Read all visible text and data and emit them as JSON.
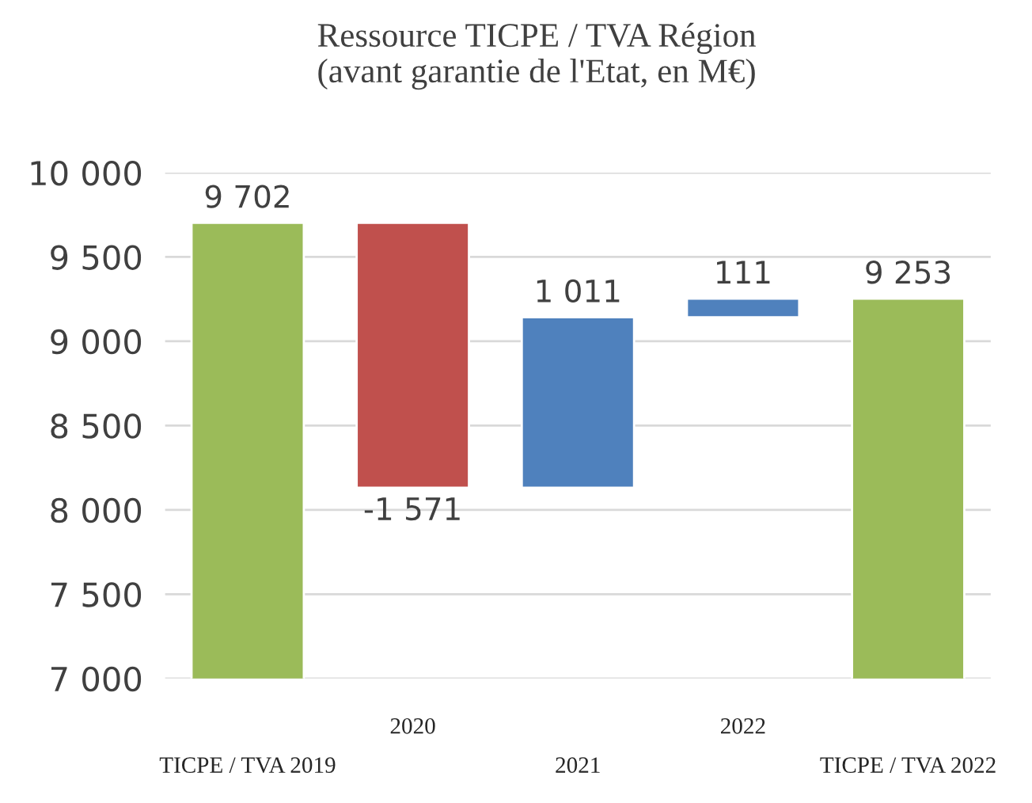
{
  "chart_data": {
    "type": "bar",
    "title": "Ressource TICPE / TVA Région\n(avant garantie de l'Etat, en M€)",
    "categories": [
      "TICPE / TVA 2019",
      "2020",
      "2021",
      "2022",
      "TICPE / TVA 2022"
    ],
    "values": [
      9702,
      -1571,
      1011,
      111,
      9253
    ],
    "base": [
      0,
      9702,
      8131,
      9142,
      0
    ],
    "colors": [
      "#9bbb59",
      "#c0504d",
      "#4f81bd",
      "#4f81bd",
      "#9bbb59"
    ],
    "value_labels": [
      "9 702",
      "-1 571",
      "1 011",
      "111",
      "9 253"
    ],
    "ylim": [
      7000,
      10000
    ],
    "yticks": [
      {
        "value": 7000,
        "label": "7 000"
      },
      {
        "value": 7500,
        "label": "7 500"
      },
      {
        "value": 8000,
        "label": "8 000"
      },
      {
        "value": 8500,
        "label": "8 500"
      },
      {
        "value": 9000,
        "label": "9 000"
      },
      {
        "value": 9500,
        "label": "9 500"
      },
      {
        "value": 10000,
        "label": "10 000"
      }
    ],
    "grid": "y",
    "legend": false
  }
}
